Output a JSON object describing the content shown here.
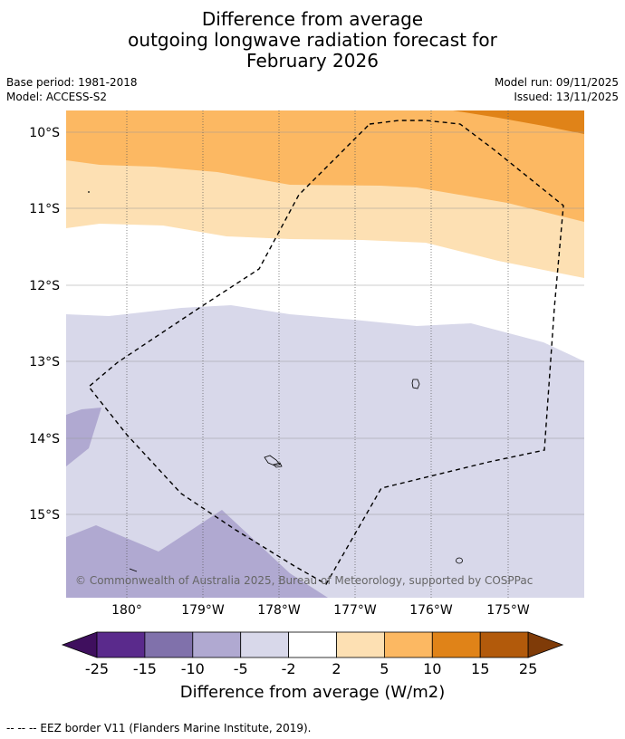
{
  "title": {
    "line1": "Difference from average",
    "line2": "outgoing longwave radiation forecast for",
    "line3": "February 2026"
  },
  "meta": {
    "base_period": "Base period: 1981-2018",
    "model": "Model: ACCESS-S2",
    "model_run": "Model run: 09/11/2025",
    "issued": "Issued: 13/11/2025"
  },
  "map": {
    "lat_labels": [
      "10°S",
      "11°S",
      "12°S",
      "13°S",
      "14°S",
      "15°S"
    ],
    "lon_labels": [
      "180°",
      "179°W",
      "178°W",
      "177°W",
      "176°W",
      "175°W"
    ],
    "copyright": "© Commonwealth of Australia 2025, Bureau of Meteorology, supported by COSPPac"
  },
  "colorbar": {
    "ticks": [
      "-25",
      "-15",
      "-10",
      "-5",
      "-2",
      "2",
      "5",
      "10",
      "15",
      "25"
    ],
    "colors": [
      "#3f0f5e",
      "#5a2a8c",
      "#8071ab",
      "#b0a9d1",
      "#d8d8ea",
      "#ffffff",
      "#fde0b3",
      "#fcb862",
      "#e08318",
      "#b25a0b",
      "#7f3b08"
    ],
    "label": "Difference from average (W/m2)"
  },
  "legend": {
    "eez_text": "--  --  -- EEZ border V11 (Flanders Marine Institute, 2019)."
  }
}
